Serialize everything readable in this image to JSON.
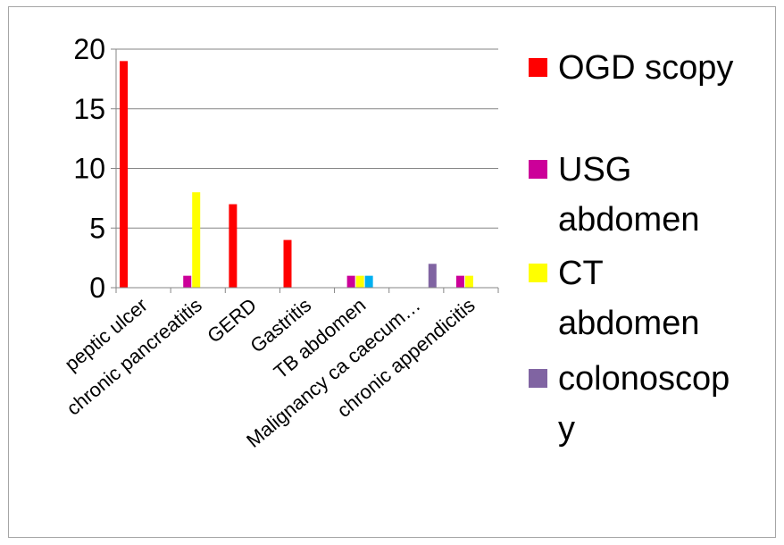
{
  "chart_data": {
    "type": "bar",
    "categories": [
      "peptic ulcer",
      "chronic pancreatitis",
      "GERD",
      "Gastritis",
      "TB abdomen",
      "Malignancy ca caecum…",
      "chronic appendicitis"
    ],
    "series": [
      {
        "name": "OGD scopy",
        "color": "#ff0000",
        "values": [
          19,
          0,
          7,
          4,
          0,
          0,
          0
        ]
      },
      {
        "name": "USG abdomen",
        "color": "#cc0099",
        "values": [
          0,
          1,
          0,
          0,
          1,
          0,
          1
        ]
      },
      {
        "name": "CT abdomen",
        "color": "#ffff00",
        "values": [
          0,
          8,
          0,
          0,
          1,
          0,
          1
        ]
      },
      {
        "name": "",
        "color": "#00b0f0",
        "values": [
          0,
          0,
          0,
          0,
          1,
          0,
          0
        ]
      },
      {
        "name": "colonoscopy",
        "color": "#8064a2",
        "values": [
          0,
          0,
          0,
          0,
          0,
          2,
          0
        ]
      }
    ],
    "legend_entries": [
      {
        "lines": [
          "OGD scopy"
        ],
        "color": "#ff0000"
      },
      {
        "lines": [
          "USG",
          "abdomen"
        ],
        "color": "#cc0099"
      },
      {
        "lines": [
          "CT",
          "abdomen"
        ],
        "color": "#ffff00"
      },
      {
        "lines": [
          "colonoscop",
          "y"
        ],
        "color": "#8064a2"
      }
    ],
    "yticks": [
      "0",
      "5",
      "10",
      "15",
      "20"
    ],
    "ylim": [
      0,
      20
    ],
    "grid": true,
    "legend_position": "right",
    "title": "",
    "xlabel": "",
    "ylabel": ""
  }
}
